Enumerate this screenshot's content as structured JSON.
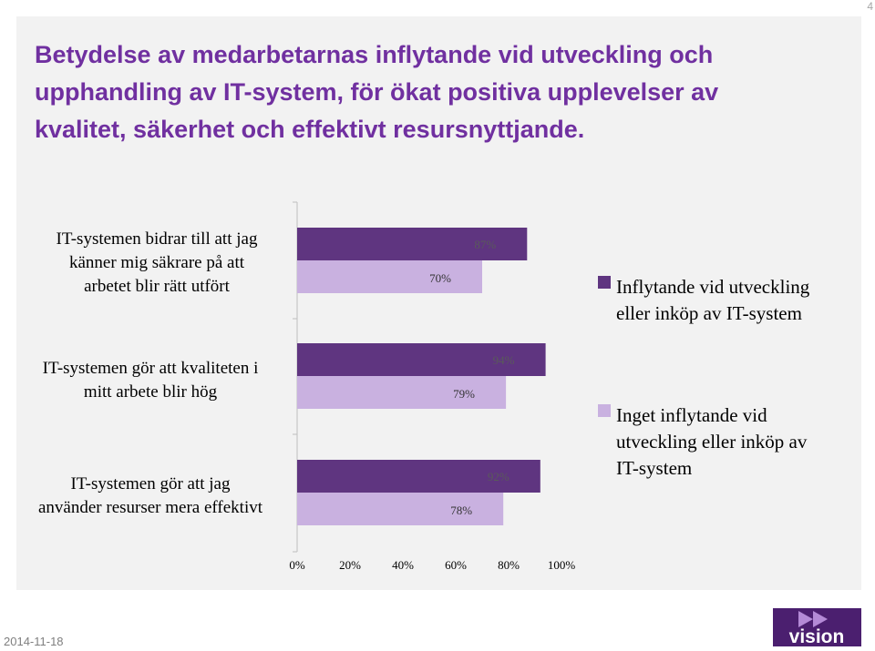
{
  "page": {
    "slide_number": "4",
    "date": "2014-11-18",
    "logo_text": "vision"
  },
  "title_lines": [
    "Betydelse av medarbetarnas inflytande vid utveckling och",
    "upphandling av IT-system, för ökat positiva upplevelser av",
    "kvalitet, säkerhet och  effektivt resursnyttjande."
  ],
  "colors": {
    "title": "#7030a0",
    "series_dark": "#5f3580",
    "series_light": "#c9b1e0",
    "panel_bg": "#f2f2f2",
    "axis": "#bfbfbf",
    "logo_bg": "#4b1f6f"
  },
  "chart_data": {
    "type": "bar",
    "orientation": "horizontal",
    "categories": [
      [
        "IT-systemen bidrar till att jag",
        "känner mig säkrare på att",
        "arbetet blir rätt utfört"
      ],
      [
        "IT-systemen gör att kvaliteten i",
        "mitt arbete blir hög"
      ],
      [
        "IT-systemen gör att jag",
        "använder resurser mera effektivt"
      ]
    ],
    "series": [
      {
        "name": [
          "Inflytande vid utveckling",
          "eller inköp av IT-system"
        ],
        "values": [
          87,
          94,
          92
        ],
        "labels": [
          "87%",
          "94%",
          "92%"
        ]
      },
      {
        "name": [
          "Inget inflytande vid",
          "utveckling eller inköp av",
          "IT-system"
        ],
        "values": [
          70,
          79,
          78
        ],
        "labels": [
          "70%",
          "79%",
          "78%"
        ]
      }
    ],
    "xlim": [
      0,
      100
    ],
    "xticks": [
      "0%",
      "20%",
      "40%",
      "60%",
      "80%",
      "100%"
    ],
    "grid": false,
    "legend": "right"
  }
}
